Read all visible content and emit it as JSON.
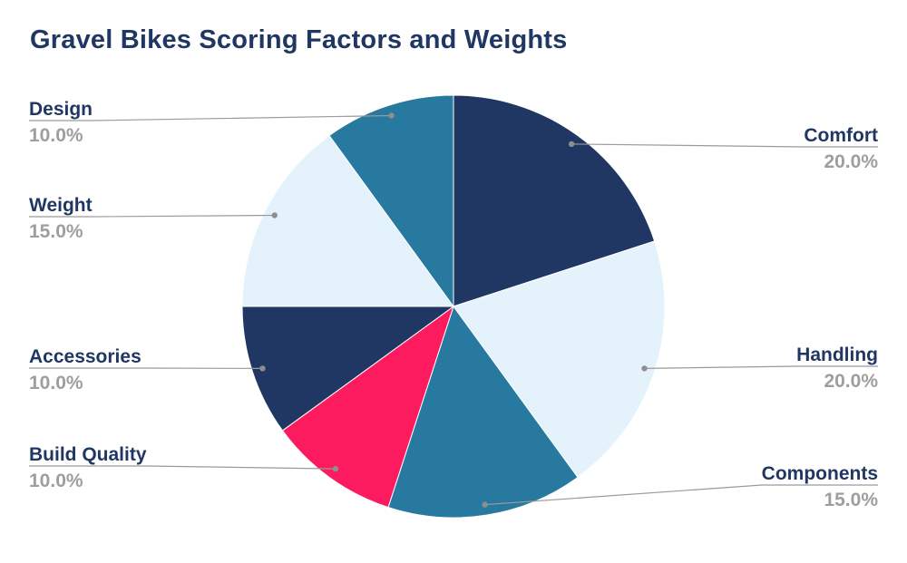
{
  "title": "Gravel Bikes Scoring Factors and Weights",
  "chart_data": {
    "type": "pie",
    "title": "Gravel Bikes Scoring Factors and Weights",
    "start_angle_deg": 0,
    "direction": "clockwise",
    "legend_position": "none",
    "unit": "%",
    "slices": [
      {
        "label": "Comfort",
        "value": 20.0,
        "display": "20.0%",
        "color": "#213763"
      },
      {
        "label": "Handling",
        "value": 20.0,
        "display": "20.0%",
        "color": "#e4f3fb"
      },
      {
        "label": "Components",
        "value": 15.0,
        "display": "15.0%",
        "color": "#2879a0"
      },
      {
        "label": "Build Quality",
        "value": 10.0,
        "display": "10.0%",
        "color": "#fc1b5e"
      },
      {
        "label": "Accessories",
        "value": 10.0,
        "display": "10.0%",
        "color": "#213763"
      },
      {
        "label": "Weight",
        "value": 15.0,
        "display": "15.0%",
        "color": "#e4f3fb"
      },
      {
        "label": "Design",
        "value": 10.0,
        "display": "10.0%",
        "color": "#2879a0"
      }
    ],
    "style": {
      "name_color": "#213763",
      "percent_color": "#9e9e9e",
      "leader_line_color": "#9a9a9a",
      "leader_dot_color": "#8e8e8e",
      "slice_stroke_color": "#ffffff"
    }
  }
}
